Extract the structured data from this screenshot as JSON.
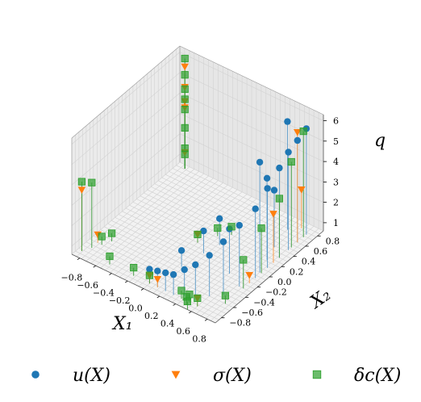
{
  "chart_data": {
    "type": "scatter",
    "projection": "3d",
    "title": "",
    "xlabel": "X₁",
    "ylabel": "X₂",
    "zlabel": "q",
    "xlim": [
      -0.9,
      0.9
    ],
    "ylim": [
      -0.9,
      0.9
    ],
    "zlim": [
      0.6,
      6.3
    ],
    "xticks": [
      "−0.8",
      "−0.6",
      "−0.4",
      "−0.2",
      "0.0",
      "0.2",
      "0.4",
      "0.6",
      "0.8"
    ],
    "yticks": [
      "−0.8",
      "−0.6",
      "−0.4",
      "−0.2",
      "0.0",
      "0.2",
      "0.4",
      "0.6",
      "0.8"
    ],
    "zticks": [
      "1",
      "2",
      "3",
      "4",
      "5",
      "6"
    ],
    "grid": true,
    "legend_position": "bottom",
    "series": [
      {
        "name": "u(X)",
        "marker": "circle",
        "color": "#1f77b4",
        "x": [
          0.8,
          0.8,
          0.8,
          0.8,
          0.8,
          0.8,
          0.75,
          0.7,
          0.6,
          0.5,
          0.4,
          0.3,
          0.2,
          0.1,
          0.0,
          0.78,
          0.72,
          0.66,
          0.55,
          0.2,
          0.15,
          0.1,
          0.6
        ],
        "y": [
          0.75,
          0.6,
          0.45,
          0.3,
          0.1,
          -0.1,
          -0.3,
          -0.5,
          -0.6,
          -0.7,
          -0.75,
          -0.8,
          -0.8,
          -0.8,
          -0.8,
          0.0,
          0.2,
          0.4,
          -0.2,
          0.1,
          -0.1,
          -0.4,
          0.7
        ],
        "z": [
          5.8,
          5.6,
          5.4,
          5.0,
          4.5,
          4.0,
          3.6,
          3.2,
          2.6,
          2.2,
          1.9,
          1.6,
          1.5,
          1.4,
          1.3,
          6.0,
          4.6,
          3.4,
          2.8,
          1.9,
          1.7,
          1.4,
          5.9
        ]
      },
      {
        "name": "σ(X)",
        "marker": "triangle-down",
        "color": "#ff7f0e",
        "x": [
          -0.8,
          -0.8,
          -0.8,
          -0.8,
          -0.8,
          0.8,
          0.8,
          0.8,
          0.6,
          0.0,
          0.0,
          -0.85,
          -0.8,
          0.1,
          0.7
        ],
        "y": [
          0.85,
          0.85,
          0.85,
          0.85,
          0.85,
          0.6,
          0.2,
          -0.2,
          -0.8,
          -0.8,
          0.0,
          -0.8,
          -0.6,
          -0.8,
          0.8
        ],
        "z": [
          5.6,
          4.6,
          3.9,
          3.6,
          1.4,
          6.0,
          3.0,
          1.0,
          1.0,
          1.0,
          1.0,
          3.6,
          1.0,
          1.0,
          2.5
        ]
      },
      {
        "name": "δc(X)",
        "marker": "square",
        "color": "#2ca02c",
        "x": [
          -0.8,
          -0.8,
          -0.8,
          -0.8,
          -0.8,
          -0.8,
          -0.8,
          -0.8,
          0.8,
          0.8,
          0.8,
          0.8,
          0.8,
          0.8,
          0.6,
          0.5,
          0.4,
          0.0,
          -0.2,
          -0.5,
          0.0,
          0.1,
          0.2,
          -0.85,
          -0.8,
          -0.75,
          -0.7,
          0.5,
          0.55
        ],
        "y": [
          0.85,
          0.85,
          0.85,
          0.85,
          0.85,
          0.85,
          0.85,
          0.85,
          0.7,
          0.5,
          0.3,
          0.0,
          -0.3,
          -0.6,
          -0.8,
          -0.8,
          -0.8,
          -0.8,
          -0.8,
          -0.8,
          0.0,
          0.2,
          0.3,
          -0.8,
          -0.7,
          -0.6,
          -0.5,
          -0.85,
          -0.9
        ],
        "z": [
          6.0,
          5.2,
          4.5,
          4.0,
          3.5,
          2.6,
          1.6,
          1.3,
          5.8,
          4.8,
          3.5,
          2.8,
          2.0,
          1.0,
          1.0,
          1.0,
          1.0,
          1.0,
          1.0,
          1.0,
          1.0,
          1.0,
          1.0,
          4.0,
          3.8,
          1.0,
          1.0,
          1.0,
          1.0
        ]
      }
    ]
  }
}
